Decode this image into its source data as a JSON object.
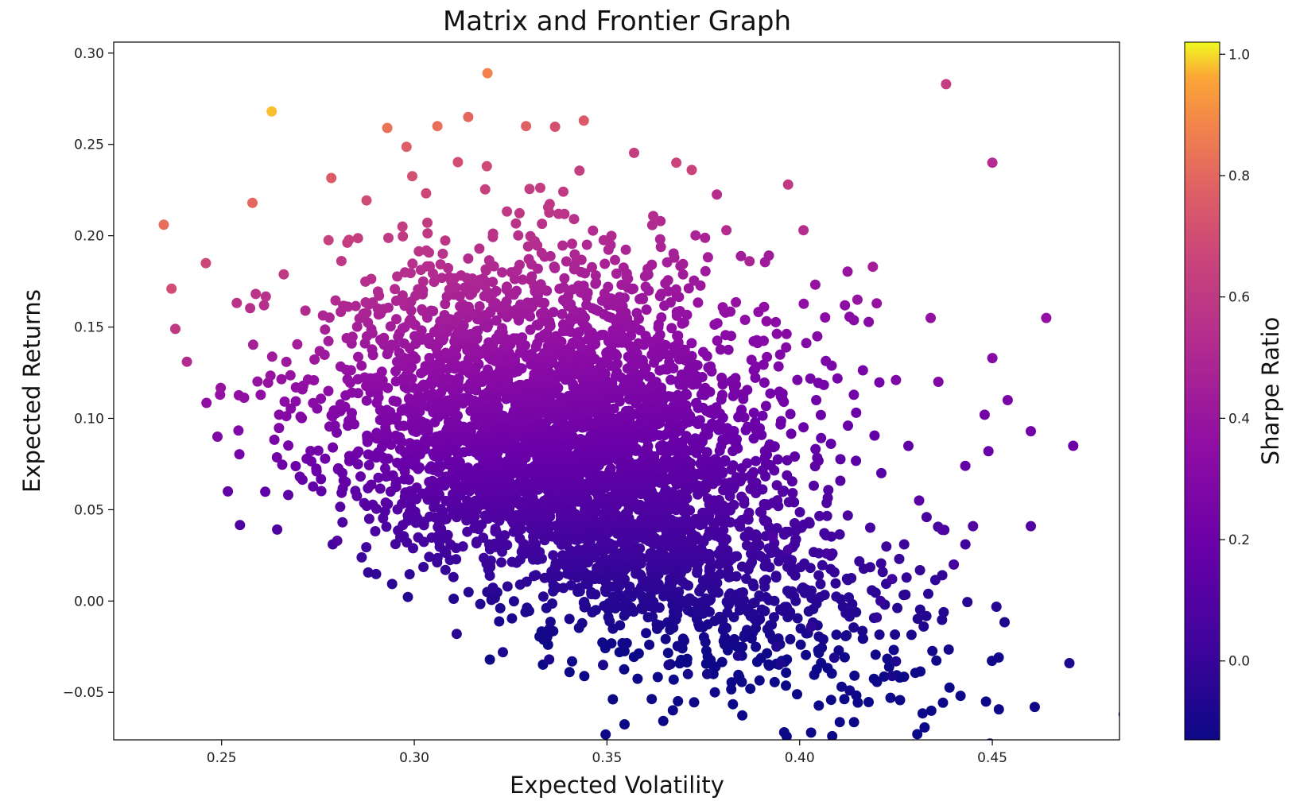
{
  "chart_data": {
    "type": "scatter",
    "title": "Matrix and Frontier Graph",
    "xlabel": "Expected Volatility",
    "ylabel": "Expected Returns",
    "xlim": [
      0.222,
      0.483
    ],
    "ylim": [
      -0.076,
      0.306
    ],
    "xticks": [
      0.25,
      0.3,
      0.35,
      0.4,
      0.45
    ],
    "xtick_labels": [
      "0.25",
      "0.30",
      "0.35",
      "0.40",
      "0.45"
    ],
    "yticks": [
      -0.05,
      0.0,
      0.05,
      0.1,
      0.15,
      0.2,
      0.25,
      0.3
    ],
    "ytick_labels": [
      "−0.05",
      "0.00",
      "0.05",
      "0.10",
      "0.15",
      "0.20",
      "0.25",
      "0.30"
    ],
    "colorbar": {
      "label": "Sharpe Ratio",
      "colormap": "plasma",
      "range": [
        -0.13,
        1.02
      ],
      "ticks": [
        0.0,
        0.2,
        0.4,
        0.6,
        0.8,
        1.0
      ],
      "tick_labels": [
        "0.0",
        "0.2",
        "0.4",
        "0.6",
        "0.8",
        "1.0"
      ]
    },
    "grid": false,
    "dense_region": {
      "center_volatility": 0.33,
      "center_return": 0.08,
      "approx_point_count": 4200
    },
    "points": [
      {
        "x": 0.235,
        "y": 0.206,
        "sharpe": 0.82
      },
      {
        "x": 0.263,
        "y": 0.268,
        "sharpe": 0.98
      },
      {
        "x": 0.319,
        "y": 0.289,
        "sharpe": 0.88
      },
      {
        "x": 0.438,
        "y": 0.283,
        "sharpe": 0.63
      },
      {
        "x": 0.45,
        "y": 0.24,
        "sharpe": 0.53
      },
      {
        "x": 0.344,
        "y": 0.263,
        "sharpe": 0.75
      },
      {
        "x": 0.314,
        "y": 0.265,
        "sharpe": 0.8
      },
      {
        "x": 0.397,
        "y": 0.228,
        "sharpe": 0.6
      },
      {
        "x": 0.368,
        "y": 0.24,
        "sharpe": 0.66
      },
      {
        "x": 0.372,
        "y": 0.236,
        "sharpe": 0.65
      },
      {
        "x": 0.401,
        "y": 0.203,
        "sharpe": 0.53
      },
      {
        "x": 0.419,
        "y": 0.183,
        "sharpe": 0.45
      },
      {
        "x": 0.464,
        "y": 0.155,
        "sharpe": 0.37
      },
      {
        "x": 0.434,
        "y": 0.155,
        "sharpe": 0.37
      },
      {
        "x": 0.45,
        "y": 0.133,
        "sharpe": 0.31
      },
      {
        "x": 0.436,
        "y": 0.12,
        "sharpe": 0.29
      },
      {
        "x": 0.454,
        "y": 0.11,
        "sharpe": 0.26
      },
      {
        "x": 0.448,
        "y": 0.102,
        "sharpe": 0.24
      },
      {
        "x": 0.471,
        "y": 0.085,
        "sharpe": 0.2
      },
      {
        "x": 0.46,
        "y": 0.093,
        "sharpe": 0.22
      },
      {
        "x": 0.449,
        "y": 0.082,
        "sharpe": 0.19
      },
      {
        "x": 0.443,
        "y": 0.074,
        "sharpe": 0.17
      },
      {
        "x": 0.431,
        "y": 0.055,
        "sharpe": 0.13
      },
      {
        "x": 0.437,
        "y": 0.039,
        "sharpe": 0.09
      },
      {
        "x": 0.445,
        "y": 0.041,
        "sharpe": 0.1
      },
      {
        "x": 0.46,
        "y": 0.041,
        "sharpe": 0.1
      },
      {
        "x": 0.44,
        "y": 0.02,
        "sharpe": 0.05
      },
      {
        "x": 0.424,
        "y": 0.012,
        "sharpe": 0.03
      },
      {
        "x": 0.421,
        "y": 0.0,
        "sharpe": 0.0
      },
      {
        "x": 0.42,
        "y": -0.009,
        "sharpe": -0.02
      },
      {
        "x": 0.425,
        "y": -0.033,
        "sharpe": -0.07
      },
      {
        "x": 0.424,
        "y": -0.041,
        "sharpe": -0.09
      },
      {
        "x": 0.413,
        "y": -0.049,
        "sharpe": -0.11
      },
      {
        "x": 0.409,
        "y": -0.031,
        "sharpe": -0.07
      },
      {
        "x": 0.47,
        "y": -0.034,
        "sharpe": -0.07
      },
      {
        "x": 0.461,
        "y": -0.058,
        "sharpe": -0.12
      },
      {
        "x": 0.378,
        "y": -0.05,
        "sharpe": -0.12
      },
      {
        "x": 0.371,
        "y": -0.04,
        "sharpe": -0.1
      },
      {
        "x": 0.376,
        "y": -0.04,
        "sharpe": -0.1
      },
      {
        "x": 0.335,
        "y": -0.032,
        "sharpe": -0.08
      },
      {
        "x": 0.349,
        "y": -0.035,
        "sharpe": -0.09
      },
      {
        "x": 0.28,
        "y": 0.033,
        "sharpe": 0.1
      },
      {
        "x": 0.238,
        "y": 0.149,
        "sharpe": 0.6
      },
      {
        "x": 0.241,
        "y": 0.131,
        "sharpe": 0.52
      },
      {
        "x": 0.237,
        "y": 0.171,
        "sharpe": 0.7
      },
      {
        "x": 0.258,
        "y": 0.218,
        "sharpe": 0.8
      },
      {
        "x": 0.293,
        "y": 0.259,
        "sharpe": 0.84
      },
      {
        "x": 0.306,
        "y": 0.26,
        "sharpe": 0.82
      },
      {
        "x": 0.329,
        "y": 0.26,
        "sharpe": 0.78
      },
      {
        "x": 0.387,
        "y": 0.186,
        "sharpe": 0.48
      },
      {
        "x": 0.381,
        "y": 0.203,
        "sharpe": 0.53
      },
      {
        "x": 0.393,
        "y": 0.035,
        "sharpe": 0.09
      },
      {
        "x": 0.397,
        "y": 0.028,
        "sharpe": 0.07
      },
      {
        "x": 0.407,
        "y": 0.026,
        "sharpe": 0.06
      },
      {
        "x": 0.394,
        "y": -0.025,
        "sharpe": -0.06
      },
      {
        "x": 0.395,
        "y": -0.034,
        "sharpe": -0.08
      },
      {
        "x": 0.403,
        "y": -0.014,
        "sharpe": -0.03
      },
      {
        "x": 0.384,
        "y": -0.03,
        "sharpe": -0.07
      },
      {
        "x": 0.366,
        "y": -0.035,
        "sharpe": -0.09
      },
      {
        "x": 0.311,
        "y": -0.018,
        "sharpe": -0.04
      },
      {
        "x": 0.323,
        "y": -0.028,
        "sharpe": -0.07
      },
      {
        "x": 0.415,
        "y": 0.165,
        "sharpe": 0.39
      },
      {
        "x": 0.42,
        "y": 0.163,
        "sharpe": 0.38
      },
      {
        "x": 0.425,
        "y": 0.121,
        "sharpe": 0.28
      }
    ]
  }
}
